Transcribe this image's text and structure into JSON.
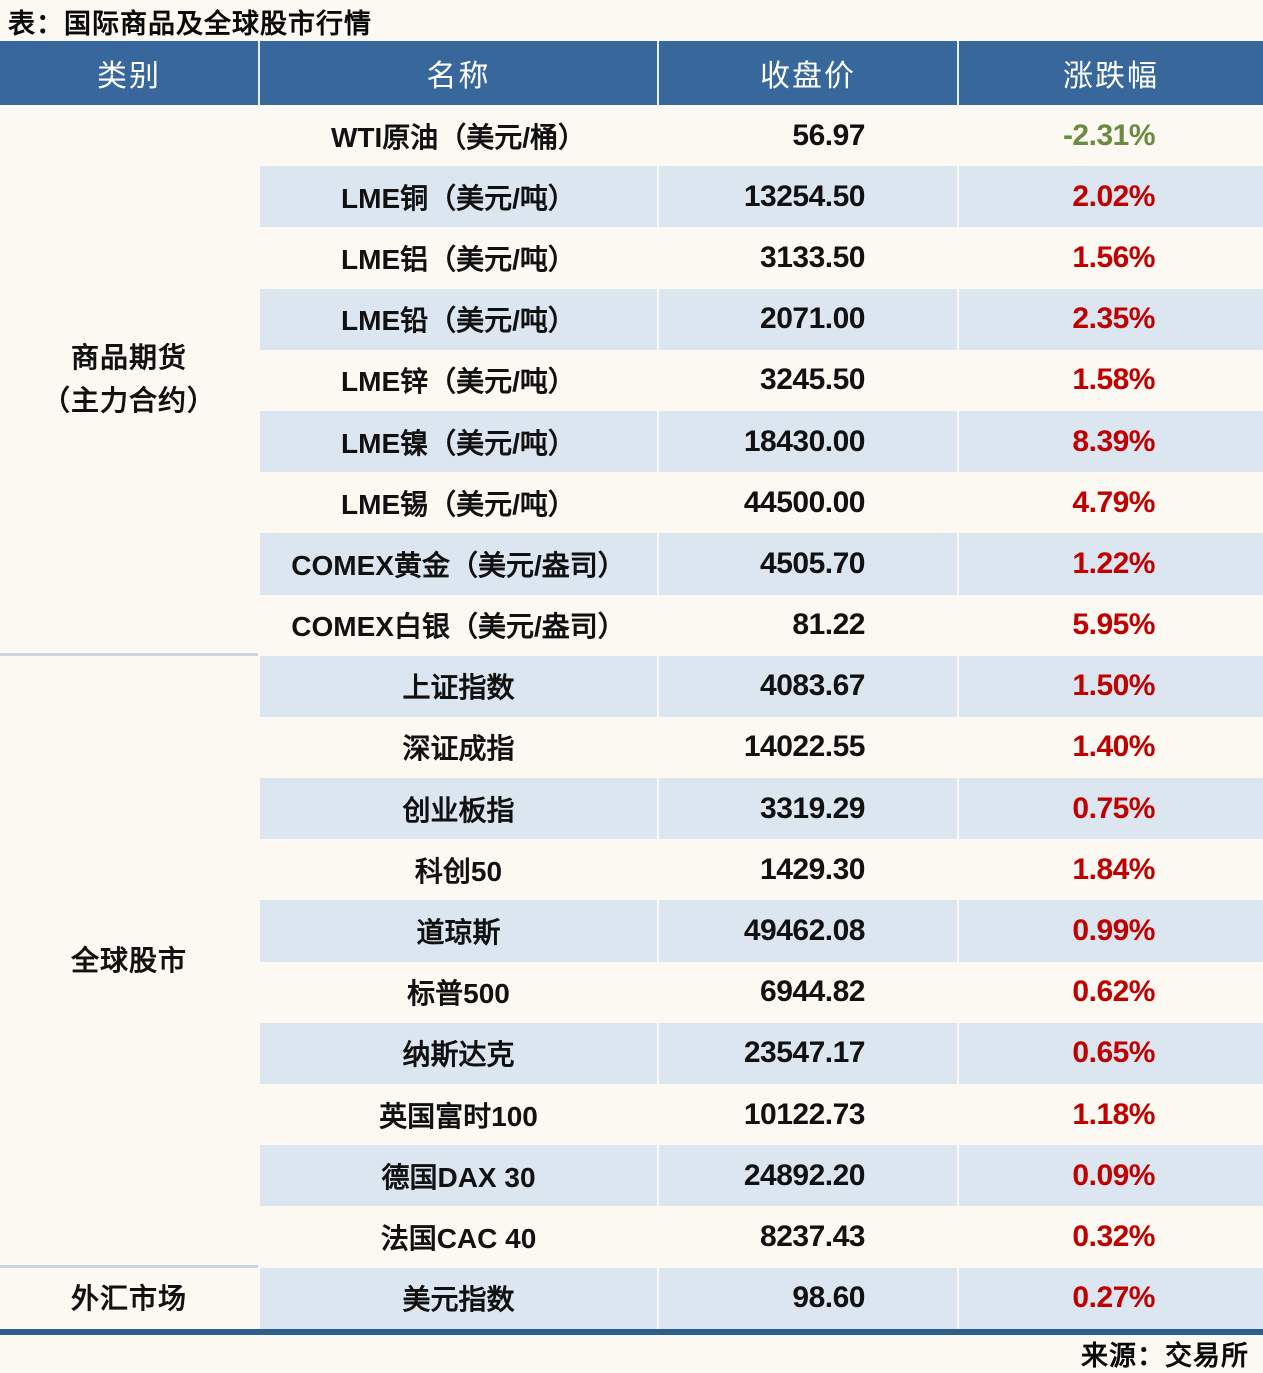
{
  "title": "表：国际商品及全球股市行情",
  "source_note": "来源：交易所",
  "colors": {
    "header_bg": "#38689b",
    "stripe_bg": "#dce6f1",
    "page_bg": "#fbf9f2",
    "up_red": "#c00000",
    "down_green": "#6b8b40",
    "divider": "#cbd6e2",
    "bottom_line": "#2e5f8c"
  },
  "chart_data": {
    "type": "table",
    "title": "国际商品及全球股市行情",
    "columns": [
      "类别",
      "名称",
      "收盘价",
      "涨跌幅"
    ],
    "groups": [
      {
        "category": "商品期货（主力合约）",
        "category_lines": [
          "商品期货",
          "（主力合约）"
        ],
        "rows": [
          {
            "name": "WTI原油（美元/桶）",
            "close": "56.97",
            "change": "-2.31%",
            "direction": "down"
          },
          {
            "name": "LME铜（美元/吨）",
            "close": "13254.50",
            "change": "2.02%",
            "direction": "up"
          },
          {
            "name": "LME铝（美元/吨）",
            "close": "3133.50",
            "change": "1.56%",
            "direction": "up"
          },
          {
            "name": "LME铅（美元/吨）",
            "close": "2071.00",
            "change": "2.35%",
            "direction": "up"
          },
          {
            "name": "LME锌（美元/吨）",
            "close": "3245.50",
            "change": "1.58%",
            "direction": "up"
          },
          {
            "name": "LME镍（美元/吨）",
            "close": "18430.00",
            "change": "8.39%",
            "direction": "up"
          },
          {
            "name": "LME锡（美元/吨）",
            "close": "44500.00",
            "change": "4.79%",
            "direction": "up"
          },
          {
            "name": "COMEX黄金（美元/盎司）",
            "close": "4505.70",
            "change": "1.22%",
            "direction": "up"
          },
          {
            "name": "COMEX白银（美元/盎司）",
            "close": "81.22",
            "change": "5.95%",
            "direction": "up"
          }
        ]
      },
      {
        "category": "全球股市",
        "category_lines": [
          "全球股市"
        ],
        "rows": [
          {
            "name": "上证指数",
            "close": "4083.67",
            "change": "1.50%",
            "direction": "up"
          },
          {
            "name": "深证成指",
            "close": "14022.55",
            "change": "1.40%",
            "direction": "up"
          },
          {
            "name": "创业板指",
            "close": "3319.29",
            "change": "0.75%",
            "direction": "up"
          },
          {
            "name": "科创50",
            "close": "1429.30",
            "change": "1.84%",
            "direction": "up"
          },
          {
            "name": "道琼斯",
            "close": "49462.08",
            "change": "0.99%",
            "direction": "up"
          },
          {
            "name": "标普500",
            "close": "6944.82",
            "change": "0.62%",
            "direction": "up"
          },
          {
            "name": "纳斯达克",
            "close": "23547.17",
            "change": "0.65%",
            "direction": "up"
          },
          {
            "name": "英国富时100",
            "close": "10122.73",
            "change": "1.18%",
            "direction": "up"
          },
          {
            "name": "德国DAX 30",
            "close": "24892.20",
            "change": "0.09%",
            "direction": "up"
          },
          {
            "name": "法国CAC 40",
            "close": "8237.43",
            "change": "0.32%",
            "direction": "up"
          }
        ]
      },
      {
        "category": "外汇市场",
        "category_lines": [
          "外汇市场"
        ],
        "rows": [
          {
            "name": "美元指数",
            "close": "98.60",
            "change": "0.27%",
            "direction": "up"
          }
        ]
      }
    ]
  }
}
